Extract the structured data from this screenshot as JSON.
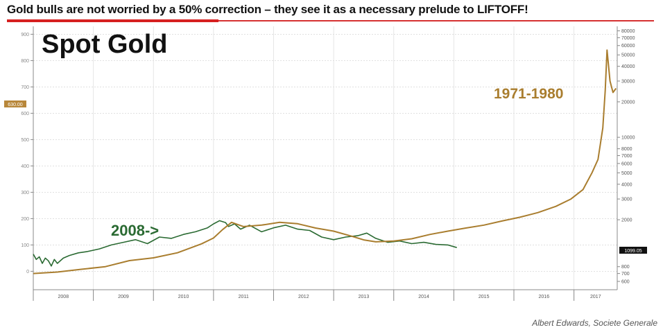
{
  "headline": "Gold bulls are not worried by a 50% correction – they see it as a necessary prelude to LIFTOFF!",
  "credit": "Albert Edwards, Societe Generale",
  "colors": {
    "spot": "#2a6a32",
    "seventies": "#a97d2e",
    "accent_red": "#d62020"
  },
  "chart_data": {
    "type": "line",
    "title": "Spot Gold",
    "x_tick_labels": [
      "2008",
      "2009",
      "2010",
      "2011",
      "2012",
      "2013",
      "2014",
      "2015",
      "2016",
      "2017"
    ],
    "left_axis": {
      "ticks": [
        0,
        100,
        200,
        300,
        400,
        500,
        600,
        700,
        800,
        900
      ],
      "ylim": [
        -70,
        930
      ]
    },
    "right_axis": {
      "scale": "log",
      "ticks": [
        600,
        700,
        800,
        2000,
        3000,
        4000,
        5000,
        6000,
        7000,
        8000,
        10000,
        20000,
        30000,
        40000,
        50000,
        60000,
        70000,
        80000
      ]
    },
    "left_badge": "630.00",
    "right_badge": "1099.05",
    "annotations": [
      {
        "text": "2008->",
        "target": "Spot Gold 2008-2015"
      },
      {
        "text": "1971-1980",
        "target": "Gold 1971-1980 overlay"
      }
    ],
    "series": [
      {
        "name": "Spot Gold 2008-2015",
        "axis": "left",
        "x": [
          2008.0,
          2008.05,
          2008.1,
          2008.15,
          2008.2,
          2008.25,
          2008.3,
          2008.35,
          2008.4,
          2008.5,
          2008.6,
          2008.75,
          2008.9,
          2009.1,
          2009.3,
          2009.5,
          2009.7,
          2009.9,
          2010.1,
          2010.3,
          2010.5,
          2010.7,
          2010.9,
          2011.0,
          2011.1,
          2011.2,
          2011.25,
          2011.35,
          2011.45,
          2011.6,
          2011.8,
          2012.0,
          2012.2,
          2012.4,
          2012.6,
          2012.8,
          2013.0,
          2013.2,
          2013.4,
          2013.55,
          2013.7,
          2013.9,
          2014.1,
          2014.3,
          2014.5,
          2014.7,
          2014.9,
          2015.05
        ],
        "values": [
          65,
          45,
          55,
          30,
          50,
          40,
          20,
          45,
          30,
          50,
          60,
          70,
          75,
          85,
          100,
          110,
          120,
          105,
          130,
          125,
          140,
          150,
          165,
          180,
          192,
          185,
          170,
          180,
          160,
          175,
          150,
          165,
          175,
          160,
          155,
          130,
          120,
          130,
          135,
          145,
          125,
          110,
          115,
          105,
          110,
          102,
          100,
          90
        ]
      },
      {
        "name": "Gold 1971-1980 overlay",
        "axis": "right",
        "x": [
          2008.0,
          2008.4,
          2008.8,
          2009.2,
          2009.6,
          2010.0,
          2010.4,
          2010.8,
          2011.0,
          2011.15,
          2011.3,
          2011.5,
          2011.8,
          2012.1,
          2012.4,
          2012.7,
          2013.0,
          2013.3,
          2013.5,
          2013.7,
          2014.0,
          2014.3,
          2014.6,
          2014.9,
          2015.2,
          2015.5,
          2015.8,
          2016.1,
          2016.4,
          2016.7,
          2016.95,
          2017.15,
          2017.3,
          2017.4,
          2017.48,
          2017.52,
          2017.55,
          2017.6,
          2017.65,
          2017.7
        ],
        "values": [
          700,
          720,
          760,
          800,
          900,
          950,
          1050,
          1250,
          1400,
          1650,
          1900,
          1750,
          1800,
          1900,
          1850,
          1700,
          1600,
          1450,
          1350,
          1300,
          1320,
          1380,
          1500,
          1600,
          1700,
          1800,
          1950,
          2100,
          2300,
          2600,
          3000,
          3600,
          5000,
          6500,
          12000,
          25000,
          55000,
          30000,
          24000,
          26000
        ]
      }
    ]
  }
}
